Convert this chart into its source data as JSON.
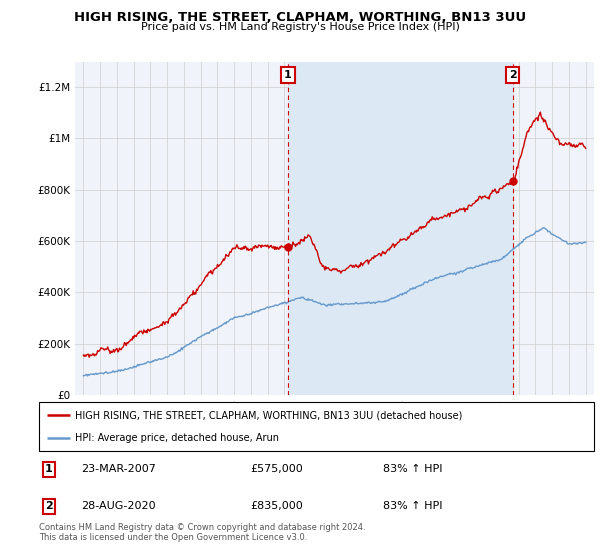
{
  "title": "HIGH RISING, THE STREET, CLAPHAM, WORTHING, BN13 3UU",
  "subtitle": "Price paid vs. HM Land Registry's House Price Index (HPI)",
  "legend_line1": "HIGH RISING, THE STREET, CLAPHAM, WORTHING, BN13 3UU (detached house)",
  "legend_line2": "HPI: Average price, detached house, Arun",
  "annotation1": {
    "label": "1",
    "date": "23-MAR-2007",
    "price": "£575,000",
    "pct": "83% ↑ HPI"
  },
  "annotation2": {
    "label": "2",
    "date": "28-AUG-2020",
    "price": "£835,000",
    "pct": "83% ↑ HPI"
  },
  "footer": "Contains HM Land Registry data © Crown copyright and database right 2024.\nThis data is licensed under the Open Government Licence v3.0.",
  "ylim": [
    0,
    1300000
  ],
  "yticks": [
    0,
    200000,
    400000,
    600000,
    800000,
    1000000,
    1200000
  ],
  "ytick_labels": [
    "£0",
    "£200K",
    "£400K",
    "£600K",
    "£800K",
    "£1M",
    "£1.2M"
  ],
  "red_color": "#cc0000",
  "blue_color": "#6699cc",
  "shade_color": "#dce9f5",
  "marker1_y": 575000,
  "marker2_y": 835000,
  "sale1_x_year": 2007.22,
  "sale2_x_year": 2020.65,
  "xmin": 1994.5,
  "xmax": 2025.5,
  "bg_color": "#f0f4fa"
}
